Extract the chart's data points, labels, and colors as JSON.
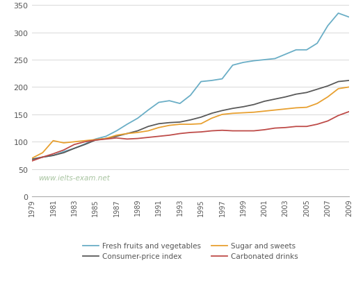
{
  "years": [
    1979,
    1980,
    1981,
    1982,
    1983,
    1984,
    1985,
    1986,
    1987,
    1988,
    1989,
    1990,
    1991,
    1992,
    1993,
    1994,
    1995,
    1996,
    1997,
    1998,
    1999,
    2000,
    2001,
    2002,
    2003,
    2004,
    2005,
    2006,
    2007,
    2008,
    2009
  ],
  "fresh_fruits_veg": [
    68,
    72,
    75,
    82,
    88,
    96,
    105,
    110,
    120,
    132,
    143,
    158,
    172,
    175,
    170,
    185,
    210,
    212,
    215,
    240,
    245,
    248,
    250,
    252,
    260,
    268,
    268,
    280,
    312,
    335,
    328
  ],
  "consumer_price": [
    68,
    72,
    75,
    80,
    88,
    95,
    103,
    106,
    110,
    115,
    120,
    128,
    133,
    135,
    136,
    140,
    145,
    152,
    157,
    161,
    164,
    168,
    174,
    178,
    182,
    187,
    190,
    196,
    202,
    210,
    212
  ],
  "sugar_sweets": [
    70,
    80,
    102,
    98,
    100,
    102,
    104,
    106,
    112,
    115,
    117,
    120,
    126,
    130,
    132,
    132,
    133,
    143,
    150,
    152,
    153,
    154,
    156,
    158,
    160,
    162,
    163,
    170,
    182,
    197,
    200
  ],
  "carbonated_drinks": [
    65,
    72,
    78,
    85,
    95,
    100,
    103,
    105,
    107,
    105,
    106,
    108,
    110,
    112,
    115,
    117,
    118,
    120,
    121,
    120,
    120,
    120,
    122,
    125,
    126,
    128,
    128,
    132,
    138,
    148,
    155
  ],
  "colors": {
    "fresh_fruits_veg": "#6aaec6",
    "consumer_price": "#595959",
    "sugar_sweets": "#e8a030",
    "carbonated_drinks": "#be4b48"
  },
  "legend_labels": {
    "fresh_fruits_veg": "Fresh fruits and vegetables",
    "consumer_price": "Consumer-price index",
    "sugar_sweets": "Sugar and sweets",
    "carbonated_drinks": "Carbonated drinks"
  },
  "legend_order": [
    [
      "fresh_fruits_veg",
      "consumer_price"
    ],
    [
      "sugar_sweets",
      "carbonated_drinks"
    ]
  ],
  "ylim": [
    0,
    350
  ],
  "yticks": [
    0,
    50,
    100,
    150,
    200,
    250,
    300,
    350
  ],
  "xticks": [
    1979,
    1981,
    1983,
    1985,
    1987,
    1989,
    1991,
    1993,
    1995,
    1997,
    1999,
    2001,
    2003,
    2005,
    2007,
    2009
  ],
  "watermark": "www.ielts-exam.net",
  "watermark_color": "#a8c4a0",
  "background_color": "#ffffff",
  "grid_color": "#d8d8d8"
}
